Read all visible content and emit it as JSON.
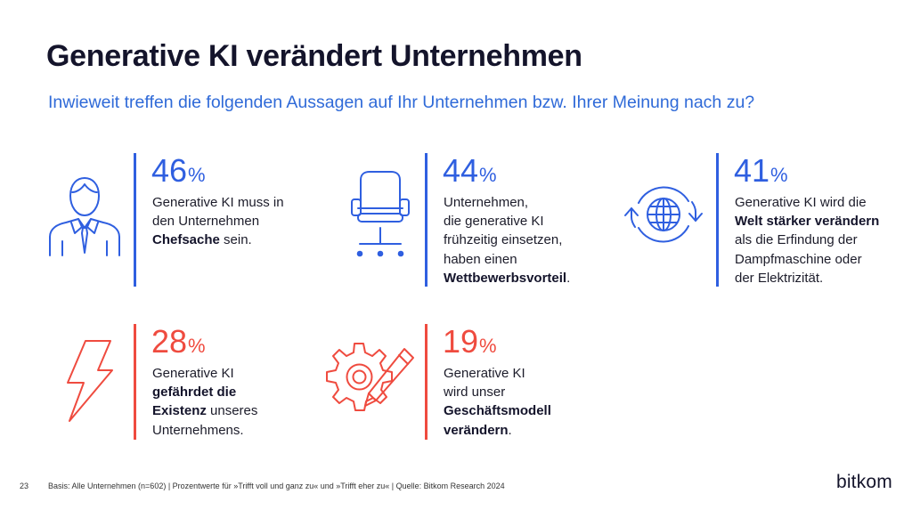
{
  "header": {
    "title": "Generative KI verändert Unternehmen",
    "subtitle": "Inwieweit treffen die folgenden Aussagen auf Ihr Unternehmen bzw. Ihrer Meinung nach zu?"
  },
  "chart_data": {
    "type": "table",
    "title": "Generative KI verändert Unternehmen",
    "subtitle": "Inwieweit treffen die folgenden Aussagen auf Ihr Unternehmen bzw. Ihrer Meinung nach zu?",
    "unit": "%",
    "items": [
      {
        "value": 46,
        "icon": "businessman-icon",
        "color": "#2f5fe0",
        "lines": [
          [
            [
              "Generative KI muss in",
              false
            ]
          ],
          [
            [
              "den Unternehmen",
              false
            ]
          ],
          [
            [
              "Chefsache",
              true
            ],
            [
              " sein.",
              false
            ]
          ]
        ]
      },
      {
        "value": 44,
        "icon": "office-chair-icon",
        "color": "#2f5fe0",
        "lines": [
          [
            [
              "Unternehmen,",
              false
            ]
          ],
          [
            [
              "die generative KI",
              false
            ]
          ],
          [
            [
              "frühzeitig einsetzen,",
              false
            ]
          ],
          [
            [
              "haben einen",
              false
            ]
          ],
          [
            [
              "Wettbewerbsvorteil",
              true
            ],
            [
              ".",
              false
            ]
          ]
        ]
      },
      {
        "value": 41,
        "icon": "globe-cycle-icon",
        "color": "#2f5fe0",
        "lines": [
          [
            [
              "Generative KI wird die",
              false
            ]
          ],
          [
            [
              "Welt stärker verändern",
              true
            ]
          ],
          [
            [
              "als die Erfindung der",
              false
            ]
          ],
          [
            [
              "Dampfmaschine oder",
              false
            ]
          ],
          [
            [
              "der Elektrizität.",
              false
            ]
          ]
        ]
      },
      {
        "value": 28,
        "icon": "lightning-icon",
        "color": "#ef4b3f",
        "lines": [
          [
            [
              "Generative KI",
              false
            ]
          ],
          [
            [
              "gefährdet die",
              true
            ]
          ],
          [
            [
              "Existenz",
              true
            ],
            [
              " unseres",
              false
            ]
          ],
          [
            [
              "Unternehmens.",
              false
            ]
          ]
        ]
      },
      {
        "value": 19,
        "icon": "gear-pencil-icon",
        "color": "#ef4b3f",
        "lines": [
          [
            [
              "Generative KI",
              false
            ]
          ],
          [
            [
              "wird unser",
              false
            ]
          ],
          [
            [
              "Geschäftsmodell",
              true
            ]
          ],
          [
            [
              "verändern",
              true
            ],
            [
              ".",
              false
            ]
          ]
        ]
      }
    ]
  },
  "footer": {
    "page_number": "23",
    "source": "Basis: Alle Unternehmen (n=602) | Prozentwerte für »Trifft voll und ganz zu« und »Trifft eher zu« | Quelle: Bitkom Research 2024"
  },
  "brand": {
    "logo_text": "bitkom"
  }
}
